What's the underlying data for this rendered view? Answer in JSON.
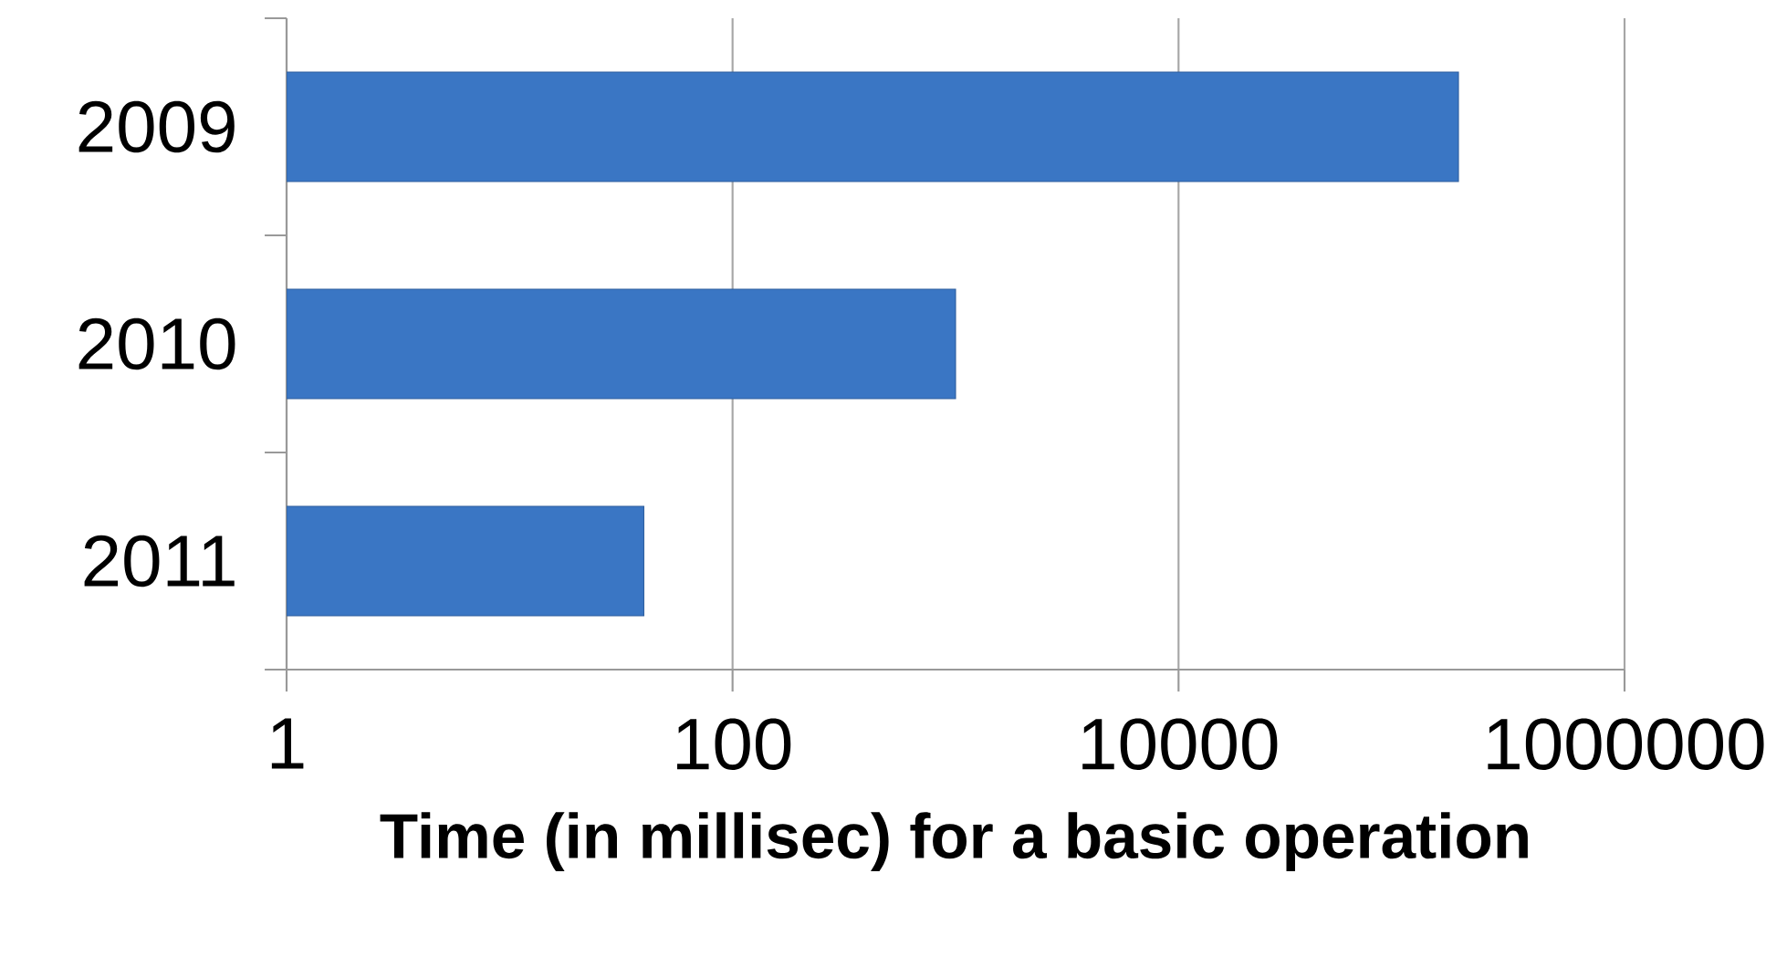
{
  "chart_data": {
    "type": "bar",
    "orientation": "horizontal",
    "categories": [
      "2009",
      "2010",
      "2011"
    ],
    "values": [
      180000,
      1000,
      40
    ],
    "color": "#3a76c4",
    "xlabel": "Time (in millisec) for a basic operation",
    "log": "x",
    "xlim": [
      1,
      1000000
    ],
    "xticks": [
      1,
      100,
      10000,
      1000000
    ],
    "grid": "x"
  }
}
